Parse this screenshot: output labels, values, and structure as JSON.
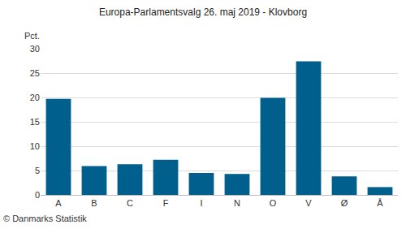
{
  "chart_data": {
    "type": "bar",
    "title": "Europa-Parlamentsvalg 26. maj 2019 - Klovborg",
    "ylabel": "Pct.",
    "annotations": [
      "© Danmarks Statistik"
    ],
    "categories": [
      "A",
      "B",
      "C",
      "F",
      "I",
      "N",
      "O",
      "V",
      "Ø",
      "Å"
    ],
    "values": [
      19.7,
      5.9,
      6.3,
      7.2,
      4.5,
      4.3,
      19.9,
      27.4,
      3.8,
      1.6
    ],
    "color": "#005f8c",
    "ylim": [
      0,
      30
    ],
    "yticks": [
      0,
      5,
      10,
      15,
      20,
      25,
      30
    ],
    "grid": true
  }
}
